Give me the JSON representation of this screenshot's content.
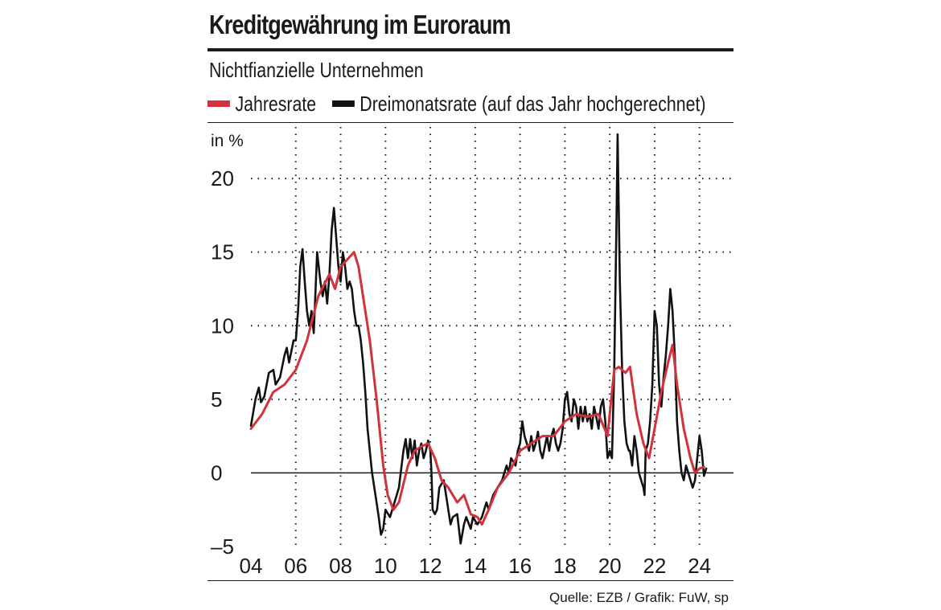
{
  "title": "Kreditgewährung im Euroraum",
  "subtitle": "Nichtfianzielle Unternehmen",
  "source": "Quelle: EZB / Grafik: FuW, sp",
  "legend": [
    {
      "label": "Jahresrate",
      "color": "#d2323c"
    },
    {
      "label": "Dreimonatsrate (auf das Jahr hochgerechnet)",
      "color": "#111111"
    }
  ],
  "chart_data": {
    "type": "line",
    "title": "Kreditgewährung im Euroraum",
    "subtitle": "Nichtfianzielle Unternehmen",
    "ylabel": "in %",
    "xlabel": "",
    "xlim": [
      2004,
      2024.8
    ],
    "ylim": [
      -5,
      23.5
    ],
    "yticks": [
      -5,
      0,
      5,
      10,
      15,
      20
    ],
    "ytick_labels": [
      "–5",
      "0",
      "5",
      "10",
      "15",
      "20"
    ],
    "xticks": [
      2004,
      2006,
      2008,
      2010,
      2012,
      2014,
      2016,
      2018,
      2020,
      2022,
      2024
    ],
    "xtick_labels": [
      "04",
      "06",
      "08",
      "10",
      "12",
      "14",
      "16",
      "18",
      "20",
      "22",
      "24"
    ],
    "grid": "dotted",
    "series": [
      {
        "name": "Jahresrate",
        "color": "#d2323c",
        "points": [
          [
            2004.0,
            3.0
          ],
          [
            2004.5,
            4.0
          ],
          [
            2005.0,
            5.5
          ],
          [
            2005.5,
            6.0
          ],
          [
            2006.0,
            7.0
          ],
          [
            2006.5,
            9.0
          ],
          [
            2007.0,
            12.0
          ],
          [
            2007.5,
            13.5
          ],
          [
            2007.75,
            12.5
          ],
          [
            2008.0,
            14.0
          ],
          [
            2008.3,
            14.5
          ],
          [
            2008.6,
            15.0
          ],
          [
            2008.8,
            14.0
          ],
          [
            2009.0,
            12.0
          ],
          [
            2009.3,
            9.0
          ],
          [
            2009.6,
            5.0
          ],
          [
            2009.9,
            0.5
          ],
          [
            2010.1,
            -1.5
          ],
          [
            2010.35,
            -2.5
          ],
          [
            2010.6,
            -2.0
          ],
          [
            2011.0,
            0.5
          ],
          [
            2011.3,
            1.5
          ],
          [
            2011.6,
            1.8
          ],
          [
            2011.9,
            2.0
          ],
          [
            2012.2,
            1.0
          ],
          [
            2012.5,
            -0.5
          ],
          [
            2012.8,
            -1.0
          ],
          [
            2013.2,
            -2.0
          ],
          [
            2013.5,
            -1.5
          ],
          [
            2013.8,
            -2.8
          ],
          [
            2014.1,
            -3.0
          ],
          [
            2014.3,
            -3.5
          ],
          [
            2014.6,
            -2.5
          ],
          [
            2015.0,
            -1.0
          ],
          [
            2015.5,
            0.0
          ],
          [
            2016.0,
            1.5
          ],
          [
            2016.5,
            2.0
          ],
          [
            2017.0,
            2.5
          ],
          [
            2017.5,
            2.5
          ],
          [
            2018.0,
            3.5
          ],
          [
            2018.5,
            4.0
          ],
          [
            2019.0,
            3.8
          ],
          [
            2019.5,
            4.0
          ],
          [
            2019.9,
            2.5
          ],
          [
            2020.2,
            7.0
          ],
          [
            2020.4,
            7.2
          ],
          [
            2020.7,
            6.8
          ],
          [
            2020.9,
            7.2
          ],
          [
            2021.2,
            4.0
          ],
          [
            2021.5,
            2.0
          ],
          [
            2021.75,
            1.0
          ],
          [
            2022.0,
            3.0
          ],
          [
            2022.3,
            5.5
          ],
          [
            2022.6,
            7.5
          ],
          [
            2022.8,
            8.7
          ],
          [
            2023.0,
            6.0
          ],
          [
            2023.3,
            3.0
          ],
          [
            2023.6,
            1.0
          ],
          [
            2023.8,
            0.0
          ],
          [
            2024.0,
            0.3
          ],
          [
            2024.2,
            0.4
          ]
        ]
      },
      {
        "name": "Dreimonatsrate (auf das Jahr hochgerechnet)",
        "color": "#111111",
        "points": [
          [
            2004.0,
            3.2
          ],
          [
            2004.2,
            5.0
          ],
          [
            2004.35,
            5.8
          ],
          [
            2004.45,
            4.8
          ],
          [
            2004.6,
            5.2
          ],
          [
            2004.8,
            6.8
          ],
          [
            2005.0,
            7.0
          ],
          [
            2005.1,
            6.0
          ],
          [
            2005.3,
            6.5
          ],
          [
            2005.5,
            8.0
          ],
          [
            2005.6,
            8.5
          ],
          [
            2005.7,
            7.5
          ],
          [
            2005.9,
            9.0
          ],
          [
            2006.0,
            9.0
          ],
          [
            2006.1,
            11.0
          ],
          [
            2006.2,
            14.0
          ],
          [
            2006.3,
            15.2
          ],
          [
            2006.4,
            13.0
          ],
          [
            2006.5,
            11.0
          ],
          [
            2006.6,
            10.0
          ],
          [
            2006.7,
            11.0
          ],
          [
            2006.8,
            9.5
          ],
          [
            2006.95,
            15.0
          ],
          [
            2007.1,
            13.0
          ],
          [
            2007.2,
            12.0
          ],
          [
            2007.3,
            13.0
          ],
          [
            2007.4,
            11.5
          ],
          [
            2007.5,
            13.5
          ],
          [
            2007.6,
            16.5
          ],
          [
            2007.7,
            18.0
          ],
          [
            2007.8,
            16.0
          ],
          [
            2007.9,
            14.0
          ],
          [
            2008.0,
            13.0
          ],
          [
            2008.1,
            15.0
          ],
          [
            2008.2,
            14.0
          ],
          [
            2008.3,
            12.5
          ],
          [
            2008.4,
            13.0
          ],
          [
            2008.5,
            12.5
          ],
          [
            2008.6,
            11.0
          ],
          [
            2008.7,
            10.0
          ],
          [
            2008.8,
            10.0
          ],
          [
            2008.9,
            9.0
          ],
          [
            2009.0,
            7.5
          ],
          [
            2009.1,
            5.5
          ],
          [
            2009.2,
            3.0
          ],
          [
            2009.3,
            1.5
          ],
          [
            2009.4,
            0.0
          ],
          [
            2009.5,
            -1.0
          ],
          [
            2009.6,
            -2.0
          ],
          [
            2009.7,
            -3.0
          ],
          [
            2009.8,
            -4.2
          ],
          [
            2009.9,
            -3.8
          ],
          [
            2010.0,
            -2.5
          ],
          [
            2010.2,
            -3.0
          ],
          [
            2010.4,
            -2.0
          ],
          [
            2010.6,
            -1.0
          ],
          [
            2010.8,
            1.5
          ],
          [
            2010.9,
            2.3
          ],
          [
            2011.0,
            1.0
          ],
          [
            2011.1,
            2.3
          ],
          [
            2011.2,
            1.0
          ],
          [
            2011.3,
            2.2
          ],
          [
            2011.4,
            0.5
          ],
          [
            2011.5,
            1.5
          ],
          [
            2011.6,
            2.0
          ],
          [
            2011.7,
            1.0
          ],
          [
            2011.8,
            1.5
          ],
          [
            2011.9,
            2.2
          ],
          [
            2012.0,
            1.5
          ],
          [
            2012.05,
            0.0
          ],
          [
            2012.1,
            -2.5
          ],
          [
            2012.2,
            -2.8
          ],
          [
            2012.3,
            -2.5
          ],
          [
            2012.4,
            -1.0
          ],
          [
            2012.6,
            -0.5
          ],
          [
            2012.7,
            -1.5
          ],
          [
            2012.8,
            -2.5
          ],
          [
            2012.9,
            -3.5
          ],
          [
            2013.0,
            -3.0
          ],
          [
            2013.2,
            -2.8
          ],
          [
            2013.35,
            -4.8
          ],
          [
            2013.5,
            -3.5
          ],
          [
            2013.6,
            -3.0
          ],
          [
            2013.8,
            -3.8
          ],
          [
            2013.9,
            -3.0
          ],
          [
            2014.1,
            -3.5
          ],
          [
            2014.3,
            -3.0
          ],
          [
            2014.5,
            -2.0
          ],
          [
            2014.6,
            -2.5
          ],
          [
            2014.8,
            -1.5
          ],
          [
            2015.0,
            -1.0
          ],
          [
            2015.2,
            -0.5
          ],
          [
            2015.4,
            0.5
          ],
          [
            2015.5,
            0.0
          ],
          [
            2015.6,
            1.0
          ],
          [
            2015.8,
            0.5
          ],
          [
            2015.9,
            1.5
          ],
          [
            2016.0,
            2.0
          ],
          [
            2016.1,
            3.5
          ],
          [
            2016.2,
            2.5
          ],
          [
            2016.3,
            2.0
          ],
          [
            2016.4,
            1.5
          ],
          [
            2016.5,
            2.5
          ],
          [
            2016.6,
            1.5
          ],
          [
            2016.7,
            2.0
          ],
          [
            2016.8,
            2.8
          ],
          [
            2016.9,
            1.5
          ],
          [
            2017.0,
            1.0
          ],
          [
            2017.2,
            2.5
          ],
          [
            2017.3,
            1.5
          ],
          [
            2017.4,
            2.5
          ],
          [
            2017.5,
            3.0
          ],
          [
            2017.6,
            2.0
          ],
          [
            2017.7,
            1.5
          ],
          [
            2017.8,
            2.0
          ],
          [
            2017.9,
            3.0
          ],
          [
            2018.0,
            5.0
          ],
          [
            2018.1,
            5.5
          ],
          [
            2018.2,
            4.0
          ],
          [
            2018.3,
            3.5
          ],
          [
            2018.4,
            5.0
          ],
          [
            2018.5,
            4.5
          ],
          [
            2018.6,
            3.0
          ],
          [
            2018.7,
            4.5
          ],
          [
            2018.8,
            3.5
          ],
          [
            2018.9,
            4.5
          ],
          [
            2019.0,
            3.5
          ],
          [
            2019.1,
            4.0
          ],
          [
            2019.2,
            3.0
          ],
          [
            2019.3,
            4.5
          ],
          [
            2019.4,
            3.8
          ],
          [
            2019.5,
            3.0
          ],
          [
            2019.6,
            4.5
          ],
          [
            2019.7,
            5.0
          ],
          [
            2019.8,
            3.5
          ],
          [
            2019.9,
            1.0
          ],
          [
            2020.0,
            1.5
          ],
          [
            2020.1,
            1.0
          ],
          [
            2020.2,
            7.0
          ],
          [
            2020.3,
            17.0
          ],
          [
            2020.35,
            23.0
          ],
          [
            2020.45,
            13.0
          ],
          [
            2020.55,
            7.0
          ],
          [
            2020.65,
            3.5
          ],
          [
            2020.75,
            2.0
          ],
          [
            2020.85,
            1.5
          ],
          [
            2020.9,
            1.5
          ],
          [
            2021.0,
            0.5
          ],
          [
            2021.1,
            2.5
          ],
          [
            2021.2,
            1.5
          ],
          [
            2021.3,
            0.0
          ],
          [
            2021.4,
            -0.5
          ],
          [
            2021.5,
            -1.0
          ],
          [
            2021.55,
            -1.5
          ],
          [
            2021.6,
            1.5
          ],
          [
            2021.7,
            2.0
          ],
          [
            2021.8,
            3.5
          ],
          [
            2021.9,
            6.0
          ],
          [
            2022.0,
            11.0
          ],
          [
            2022.1,
            10.0
          ],
          [
            2022.2,
            6.0
          ],
          [
            2022.3,
            4.5
          ],
          [
            2022.4,
            6.5
          ],
          [
            2022.5,
            8.0
          ],
          [
            2022.6,
            10.0
          ],
          [
            2022.7,
            12.5
          ],
          [
            2022.8,
            11.0
          ],
          [
            2022.9,
            8.0
          ],
          [
            2023.0,
            3.5
          ],
          [
            2023.1,
            1.5
          ],
          [
            2023.2,
            0.0
          ],
          [
            2023.3,
            -0.5
          ],
          [
            2023.4,
            0.5
          ],
          [
            2023.5,
            0.0
          ],
          [
            2023.6,
            -0.5
          ],
          [
            2023.7,
            -1.0
          ],
          [
            2023.8,
            -0.5
          ],
          [
            2023.9,
            1.0
          ],
          [
            2024.0,
            2.5
          ],
          [
            2024.1,
            1.5
          ],
          [
            2024.2,
            -0.2
          ],
          [
            2024.3,
            0.3
          ]
        ]
      }
    ]
  }
}
